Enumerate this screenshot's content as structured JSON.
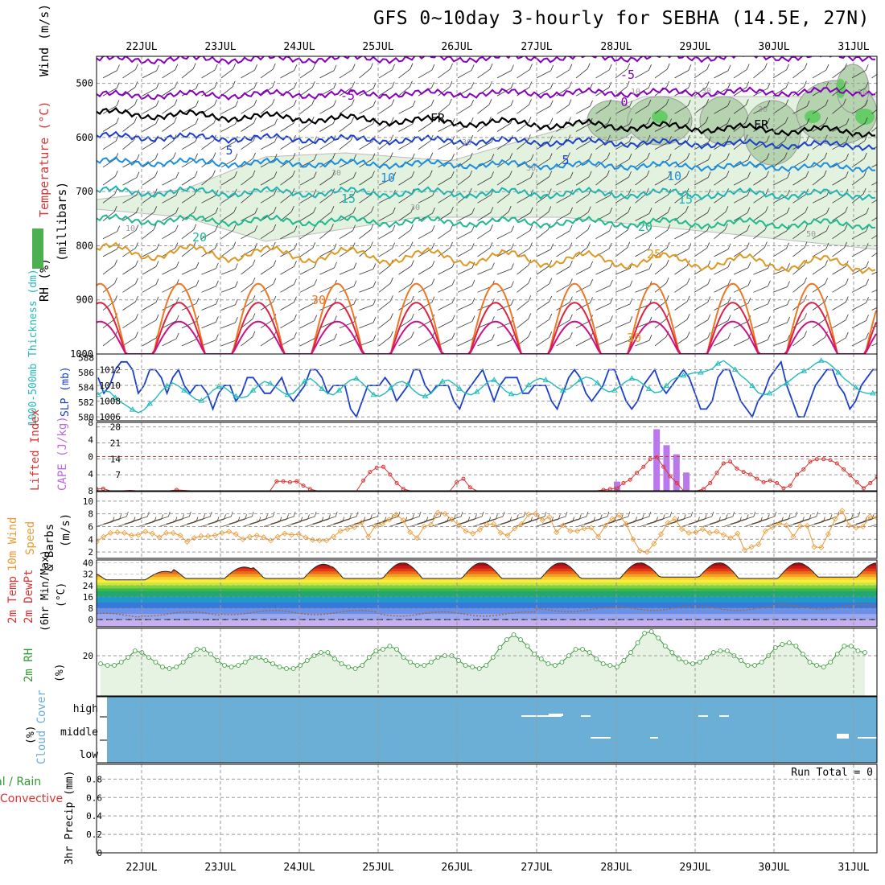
{
  "title": "GFS 0~10day 3-hourly for SEBHA (14.5E, 27N)",
  "dates": [
    "22JUL",
    "23JUL",
    "24JUL",
    "25JUL",
    "26JUL",
    "27JUL",
    "28JUL",
    "29JUL",
    "30JUL",
    "31JUL"
  ],
  "colors": {
    "grid": "#999999",
    "purple": "#8800cc",
    "blue": "#1133cc",
    "teal": "#22bbbb",
    "red": "#dd3333",
    "orange": "#ee9933",
    "green": "#33aa33",
    "cloud": "#6baed6"
  },
  "chart_data": [
    {
      "type": "line",
      "panel": "upper-air",
      "ylabel_wind": "Wind (m/s)",
      "ylabel_temp": "Temperature (°C)",
      "ylabel_rh": "RH (%)",
      "ylabel_units": "(millibars)",
      "yticks": [
        500,
        600,
        700,
        800,
        900,
        1000
      ],
      "ylim": [
        450,
        1000
      ],
      "isotherms": [
        {
          "label": "-5",
          "pressure": 515
        },
        {
          "label": "-5",
          "pressure": 490
        },
        {
          "label": "0",
          "pressure": 540
        },
        {
          "label": "FR",
          "pressure": 560
        },
        {
          "label": "FR",
          "pressure": 575
        },
        {
          "label": "5",
          "pressure": 625
        },
        {
          "label": "5",
          "pressure": 640
        },
        {
          "label": "10",
          "pressure": 680
        },
        {
          "label": "10",
          "pressure": 675
        },
        {
          "label": "15",
          "pressure": 720
        },
        {
          "label": "15",
          "pressure": 715
        },
        {
          "label": "20",
          "pressure": 785
        },
        {
          "label": "20",
          "pressure": 760
        },
        {
          "label": "25",
          "pressure": 820
        },
        {
          "label": "30",
          "pressure": 905
        },
        {
          "label": "30",
          "pressure": 975
        }
      ],
      "rh_labels": [
        "10",
        "30",
        "30",
        "10",
        "30",
        "30",
        "50",
        "50",
        "30",
        "30"
      ]
    },
    {
      "type": "line",
      "panel": "slp-thickness",
      "ylabel_left": "1000-500mb Thickness (dm)",
      "ylabel_right": "SLP (mb)",
      "left_ticks": [
        "580",
        "582",
        "584",
        "586",
        "588"
      ],
      "right_ticks": [
        "1006",
        "1008",
        "1010",
        "1012"
      ],
      "series": [
        {
          "name": "SLP",
          "values": [
            1011,
            1009,
            1010,
            1012,
            1013,
            1013,
            1012,
            1009,
            1010,
            1012,
            1012,
            1011,
            1009,
            1011,
            1012,
            1010,
            1009,
            1010,
            1010,
            1009,
            1007,
            1009,
            1010,
            1010,
            1008,
            1009,
            1011,
            1011,
            1010,
            1009,
            1009,
            1010,
            1011,
            1009,
            1008,
            1009,
            1010,
            1012,
            1012,
            1011,
            1009,
            1010,
            1010,
            1010,
            1007,
            1006,
            1008,
            1010,
            1010,
            1010,
            1011,
            1010,
            1008,
            1009,
            1010,
            1012,
            1012,
            1010,
            1009,
            1010,
            1010,
            1010,
            1008,
            1007,
            1009,
            1010,
            1011,
            1012,
            1010,
            1008,
            1010,
            1011,
            1011,
            1011,
            1009,
            1009,
            1010,
            1010,
            1010,
            1008,
            1007,
            1009,
            1011,
            1012,
            1011,
            1009,
            1008,
            1009,
            1010,
            1012,
            1012,
            1010,
            1008,
            1007,
            1008,
            1010,
            1011,
            1012,
            1010,
            1009,
            1010,
            1011,
            1012,
            1011,
            1009,
            1007,
            1007,
            1008,
            1011,
            1012,
            1012,
            1010,
            1008,
            1007,
            1006,
            1008,
            1009,
            1011,
            1012,
            1013,
            1010,
            1008,
            1006,
            1006,
            1008,
            1010,
            1011,
            1012,
            1012,
            1010,
            1009,
            1007,
            1008,
            1010,
            1011,
            1012,
            1012
          ]
        },
        {
          "name": "Thickness",
          "values": [
            583.0,
            583.5,
            583.4,
            582.6,
            582.0,
            581.5,
            581.0,
            580.6,
            581.0,
            581.8,
            582.5,
            583.5,
            584.2,
            584.6,
            584.2,
            583.6,
            583.0,
            582.4,
            582.2,
            582.8,
            583.6,
            584.1,
            584.0,
            583.4,
            582.8,
            582.6,
            582.8,
            583.6,
            584.3,
            584.8,
            584.5,
            584.0,
            583.4,
            583.0,
            583.2,
            584.0,
            584.8,
            585.2,
            584.6,
            583.8,
            583.2,
            583.0,
            583.6,
            584.4,
            585.0,
            585.2,
            584.6,
            583.8,
            583.0,
            582.8,
            583.2,
            583.9,
            584.6,
            584.8,
            584.4,
            583.6,
            583.0,
            582.8,
            583.2,
            584.0,
            584.8,
            585.0,
            584.5,
            583.8,
            583.2,
            583.0,
            583.4,
            584.1,
            584.8,
            585.0,
            584.3,
            583.5,
            583.1,
            583.0,
            583.4,
            584.3,
            584.9,
            585.2,
            585.0,
            584.6,
            584.0,
            583.6,
            583.8,
            584.4,
            585.0,
            585.4,
            585.2,
            584.6,
            583.8,
            583.4,
            583.6,
            584.2,
            584.8,
            585.2,
            585.0,
            584.4,
            583.8,
            583.3,
            583.4,
            584.2,
            585.0,
            585.4,
            585.6,
            585.8,
            586.0,
            586.0,
            586.2,
            586.5,
            587.2,
            587.6,
            587.0,
            586.4,
            585.6,
            585.0,
            584.2,
            583.3,
            583.0,
            583.2,
            583.6,
            584.2,
            584.6,
            585.2,
            585.8,
            586.2,
            586.6,
            587.2,
            587.6,
            587.4,
            586.8,
            586.0,
            585.2,
            584.6,
            584.0,
            583.4,
            583.2,
            583.2,
            583.4
          ]
        }
      ]
    },
    {
      "type": "bar",
      "panel": "cape-li",
      "ylabel_left": "Lifted Index",
      "ylabel_right": "CAPE (J/kg)",
      "li_ticks": [
        "-8",
        "-4",
        "0",
        "4",
        "8"
      ],
      "cape_ticks": [
        "28",
        "21",
        "14",
        "7"
      ],
      "cape_bars": [
        {
          "x": 52.6,
          "value": 4
        },
        {
          "x": 56.6,
          "value": 27
        },
        {
          "x": 57.6,
          "value": 20
        },
        {
          "x": 58.6,
          "value": 16
        },
        {
          "x": 59.6,
          "value": 8
        }
      ],
      "li_values": [
        7.6,
        7.5,
        8.0,
        8.0,
        8.0,
        7.9,
        8.0,
        8.0,
        8.0,
        8.0,
        8.0,
        8.0,
        7.8,
        7.9,
        8.0,
        8.0,
        8.0,
        8.0,
        8.0,
        8.0,
        8.0,
        8.0,
        8.0,
        8.0,
        8.0,
        8.0,
        8.0,
        5.8,
        5.8,
        6.0,
        5.8,
        6.8,
        7.6,
        8.0,
        8.0,
        8.0,
        8.0,
        8.0,
        8.0,
        8.0,
        5.6,
        3.6,
        2.6,
        2.4,
        4.2,
        6.2,
        7.6,
        8.0,
        8.0,
        8.0,
        8.0,
        8.0,
        8.0,
        8.0,
        6.0,
        5.2,
        7.2,
        8.0,
        8.0,
        8.0,
        8.0,
        8.0,
        8.0,
        8.0,
        8.0,
        8.0,
        8.0,
        8.0,
        8.0,
        8.0,
        8.0,
        8.0,
        8.0,
        8.0,
        8.0,
        8.0,
        7.8,
        7.6,
        7.4,
        6.2,
        5.4,
        3.8,
        2.4,
        0.6,
        0.2,
        2.4,
        4.6,
        6.2,
        8.0,
        8.0,
        8.0,
        7.6,
        6.2,
        3.8,
        1.6,
        1.2,
        2.8,
        3.6,
        4.2,
        5.2,
        6.0,
        5.6,
        6.2,
        7.4,
        6.8,
        4.2,
        3.0,
        1.2,
        0.6,
        0.6,
        0.8,
        1.6,
        3.0,
        4.4,
        6.0,
        7.4,
        6.2,
        4.8
      ]
    },
    {
      "type": "line",
      "panel": "wind10m",
      "ylabel": "10m Wind Speed & Barbs (m/s)",
      "yticks": [
        "10",
        "8",
        "6",
        "4",
        "2"
      ],
      "values": [
        3.6,
        4.4,
        5.0,
        5.1,
        5.0,
        4.6,
        4.7,
        5.2,
        4.9,
        4.3,
        5.0,
        5.0,
        4.6,
        3.6,
        4.2,
        4.5,
        4.5,
        4.6,
        5.0,
        5.2,
        4.8,
        4.0,
        4.4,
        4.6,
        4.3,
        3.8,
        4.4,
        4.9,
        4.7,
        4.8,
        4.3,
        3.9,
        3.8,
        3.8,
        4.4,
        5.3,
        5.6,
        5.9,
        6.6,
        4.4,
        6.1,
        6.4,
        7.1,
        7.9,
        7.0,
        5.1,
        4.2,
        6.0,
        6.3,
        8.2,
        8.0,
        7.1,
        6.2,
        5.3,
        4.9,
        5.5,
        6.3,
        6.4,
        5.0,
        4.6,
        5.7,
        6.4,
        7.9,
        8.0,
        7.0,
        7.5,
        5.1,
        6.2,
        5.3,
        5.3,
        5.7,
        5.8,
        4.4,
        6.1,
        7.2,
        7.8,
        6.4,
        4.0,
        2.2,
        2.0,
        3.3,
        4.8,
        6.6,
        7.2,
        5.6,
        5.0,
        5.1,
        5.6,
        5.0,
        5.2,
        4.7,
        4.2,
        4.9,
        2.3,
        2.8,
        3.2,
        5.3,
        5.9,
        6.5,
        6.2,
        4.4,
        6.1,
        6.1,
        2.8,
        2.7,
        4.8,
        7.2,
        8.5,
        6.2,
        5.8,
        6.0,
        7.6,
        7.4
      ]
    },
    {
      "type": "area",
      "panel": "temp2m",
      "ylabel": "2m Temp 2m DewPt (6hr Min/Max) (°C)",
      "yticks": [
        "40",
        "32",
        "24",
        "16",
        "8",
        "0"
      ],
      "temp_max": [
        34,
        37,
        39,
        40,
        40,
        40,
        40,
        40,
        40,
        40
      ],
      "temp_min": [
        28,
        29,
        29,
        29,
        29,
        29,
        29,
        30,
        29,
        30
      ],
      "dewpt": [
        3,
        4,
        5,
        5,
        4,
        4,
        7,
        8,
        8,
        9
      ]
    },
    {
      "type": "line",
      "panel": "rh2m",
      "ylabel": "2m RH (%)",
      "yticks": [
        "20"
      ],
      "values": [
        15,
        14,
        14,
        16,
        19,
        23,
        22,
        19,
        16,
        13,
        12,
        13,
        16,
        20,
        24,
        24,
        21,
        17,
        14,
        13,
        14,
        16,
        19,
        19,
        17,
        15,
        13,
        12,
        12,
        14,
        17,
        20,
        22,
        22,
        18,
        15,
        13,
        12,
        14,
        19,
        23,
        24,
        26,
        24,
        19,
        16,
        14,
        14,
        16,
        19,
        20,
        20,
        17,
        14,
        13,
        12,
        14,
        19,
        25,
        30,
        33,
        30,
        26,
        21,
        18,
        15,
        14,
        16,
        20,
        24,
        24,
        22,
        18,
        15,
        14,
        13,
        17,
        22,
        28,
        34,
        35,
        31,
        26,
        22,
        18,
        16,
        15,
        16,
        19,
        22,
        23,
        23,
        20,
        17,
        14,
        14,
        16,
        20,
        25,
        27,
        28,
        26,
        21,
        16,
        14,
        13,
        16,
        21,
        26,
        26,
        23,
        22
      ]
    },
    {
      "type": "area",
      "panel": "cloud",
      "ylabel": "Cloud Cover (%)",
      "levels": [
        "high",
        "middle",
        "low"
      ]
    },
    {
      "type": "bar",
      "panel": "precip",
      "ylabel_left": "Total / Rain Convective",
      "ylabel": "3hr Precip (mm)",
      "yticks": [
        "0.8",
        "0.6",
        "0.4",
        "0.2",
        "0"
      ],
      "annotation": "Run Total = 0"
    }
  ]
}
